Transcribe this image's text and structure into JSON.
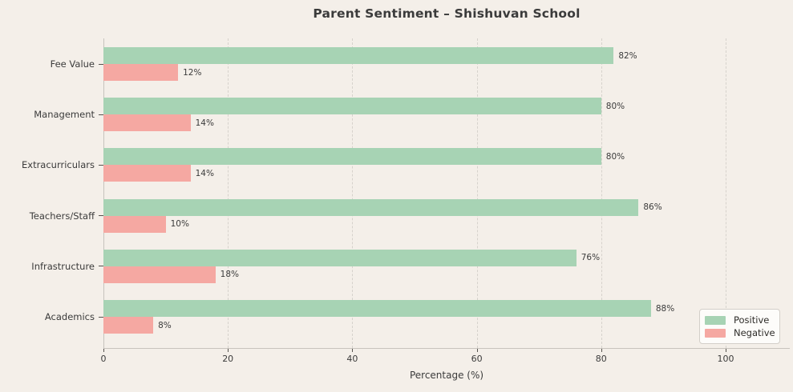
{
  "chart_data": {
    "type": "bar",
    "orientation": "horizontal",
    "title": "Parent Sentiment – Shishuvan School",
    "xlabel": "Percentage (%)",
    "categories": [
      "Fee Value",
      "Management",
      "Extracurriculars",
      "Teachers/Staff",
      "Infrastructure",
      "Academics"
    ],
    "series": [
      {
        "name": "Positive",
        "color": "#a7d3b4",
        "values": [
          82,
          80,
          80,
          86,
          76,
          88
        ]
      },
      {
        "name": "Negative",
        "color": "#f5a8a2",
        "values": [
          12,
          14,
          14,
          10,
          18,
          8
        ]
      }
    ],
    "bar_label_suffix": "%",
    "x_ticks": [
      0,
      20,
      40,
      60,
      80,
      100
    ],
    "xlim": [
      0,
      110.3
    ],
    "grid": {
      "vertical": true,
      "style": "dashed"
    },
    "legend": {
      "position": "lower-right",
      "entries": [
        "Positive",
        "Negative"
      ]
    }
  },
  "colors": {
    "background": "#f4efe9",
    "positive": "#a7d3b4",
    "negative": "#f5a8a2",
    "text": "#3b3b3b",
    "grid": "#d6d2cc",
    "spine": "#c7c3bd",
    "tick": "#56534e",
    "legend_bg": "#fdfcfa",
    "legend_border": "#d3cfc9"
  }
}
